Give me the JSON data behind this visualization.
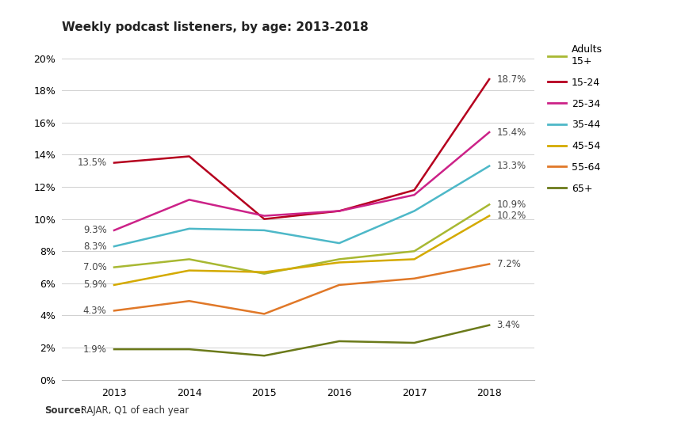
{
  "title": "Weekly podcast listeners, by age: 2013-2018",
  "source_bold": "Source:",
  "source_rest": " RAJAR, Q1 of each year",
  "years": [
    2013,
    2014,
    2015,
    2016,
    2017,
    2018
  ],
  "series": [
    {
      "label": "Adults\n15+",
      "color": "#a8b832",
      "linewidth": 1.8,
      "values": [
        7.0,
        7.5,
        6.6,
        7.5,
        8.0,
        10.9
      ],
      "start_label": "7.0%",
      "end_label": "10.9%"
    },
    {
      "label": "15-24",
      "color": "#b5001e",
      "linewidth": 1.8,
      "values": [
        13.5,
        13.9,
        10.0,
        10.5,
        11.8,
        18.7
      ],
      "start_label": "13.5%",
      "end_label": "18.7%"
    },
    {
      "label": "25-34",
      "color": "#cc2288",
      "linewidth": 1.8,
      "values": [
        9.3,
        11.2,
        10.2,
        10.5,
        11.5,
        15.4
      ],
      "start_label": "9.3%",
      "end_label": "15.4%"
    },
    {
      "label": "35-44",
      "color": "#4db8c8",
      "linewidth": 1.8,
      "values": [
        8.3,
        9.4,
        9.3,
        8.5,
        10.5,
        13.3
      ],
      "start_label": "8.3%",
      "end_label": "13.3%"
    },
    {
      "label": "45-54",
      "color": "#d4aa00",
      "linewidth": 1.8,
      "values": [
        5.9,
        6.8,
        6.7,
        7.3,
        7.5,
        10.2
      ],
      "start_label": "5.9%",
      "end_label": "10.2%"
    },
    {
      "label": "55-64",
      "color": "#e07828",
      "linewidth": 1.8,
      "values": [
        4.3,
        4.9,
        4.1,
        5.9,
        6.3,
        7.2
      ],
      "start_label": "4.3%",
      "end_label": "7.2%"
    },
    {
      "label": "65+",
      "color": "#6b7a1a",
      "linewidth": 1.8,
      "values": [
        1.9,
        1.9,
        1.5,
        2.4,
        2.3,
        3.4
      ],
      "start_label": "1.9%",
      "end_label": "3.4%"
    }
  ],
  "ylim": [
    0,
    21
  ],
  "yticks": [
    0,
    2,
    4,
    6,
    8,
    10,
    12,
    14,
    16,
    18,
    20
  ],
  "xlim_left": 2012.3,
  "xlim_right": 2018.6,
  "background_color": "#ffffff",
  "grid_color": "#d0d0d0",
  "title_fontsize": 11,
  "tick_fontsize": 9,
  "annotation_fontsize": 8.5,
  "legend_fontsize": 9,
  "source_fontsize": 8.5
}
